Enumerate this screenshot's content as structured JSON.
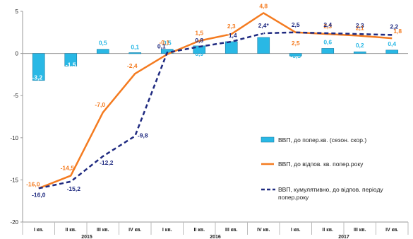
{
  "chart_data": {
    "type": "bar+line",
    "ylim": [
      -20,
      5
    ],
    "yticks": [
      5,
      0,
      -5,
      -10,
      -15,
      -20
    ],
    "categories": [
      "I кв.",
      "II кв.",
      "III кв.",
      "IV кв.",
      "I кв.",
      "II кв.",
      "III кв.",
      "IV кв.",
      "I кв.",
      "II кв.",
      "III кв.",
      "IV кв."
    ],
    "years": [
      {
        "label": "2015",
        "start": 0,
        "end": 3
      },
      {
        "label": "2016",
        "start": 4,
        "end": 7
      },
      {
        "label": "2017",
        "start": 8,
        "end": 11
      }
    ],
    "series": [
      {
        "name": "ВВП, до попер.кв. (сезон. скор.)",
        "kind": "bar",
        "color": "#29b8e5",
        "values": [
          -3.2,
          -1.5,
          0.5,
          0.1,
          0.5,
          0.9,
          1.4,
          1.9,
          -0.3,
          0.6,
          0.2,
          0.4
        ],
        "labels": [
          "-3,2",
          "-1,5",
          "0,5",
          "0,1",
          "0,5",
          "0,9",
          "1,4",
          "1,9",
          "-0,3",
          "0,6",
          "0,2",
          "0,4"
        ]
      },
      {
        "name": "ВВП, до відпов. кв. попер.року",
        "kind": "line",
        "color": "#f47b20",
        "values": [
          -16.0,
          -14.5,
          -7.0,
          -2.4,
          -0.1,
          1.5,
          2.3,
          4.8,
          2.5,
          2.3,
          2.1,
          1.8
        ],
        "labels": [
          "-16,0",
          "-14,5",
          "-7,0",
          "-2,4",
          "-0,1",
          "1,5",
          "2,3",
          "4,8",
          "2,5",
          "2,3",
          "2,1",
          "1,8"
        ]
      },
      {
        "name": "ВВП, кумулятивно, до відпов. періоду попер.року",
        "kind": "dashed-line",
        "color": "#1f2a80",
        "values": [
          -16.0,
          -15.2,
          -12.2,
          -9.8,
          0.1,
          0.8,
          1.4,
          2.4,
          2.5,
          2.4,
          2.3,
          2.2
        ],
        "labels": [
          "-16,0",
          "-15,2",
          "-12,2",
          "-9,8",
          "0,1",
          "0,8",
          "1,4",
          "2,4*",
          "2,5",
          "2,4",
          "2,3",
          "2,2"
        ]
      }
    ],
    "legend": {
      "position": "right",
      "items": [
        {
          "line1": "ВВП, до попер.кв. (сезон. скор.)",
          "line2": ""
        },
        {
          "line1": "ВВП, до відпов. кв. попер.року",
          "line2": ""
        },
        {
          "line1": "ВВП, кумулятивно, до відпов. періоду",
          "line2": "попер.року"
        }
      ]
    }
  }
}
